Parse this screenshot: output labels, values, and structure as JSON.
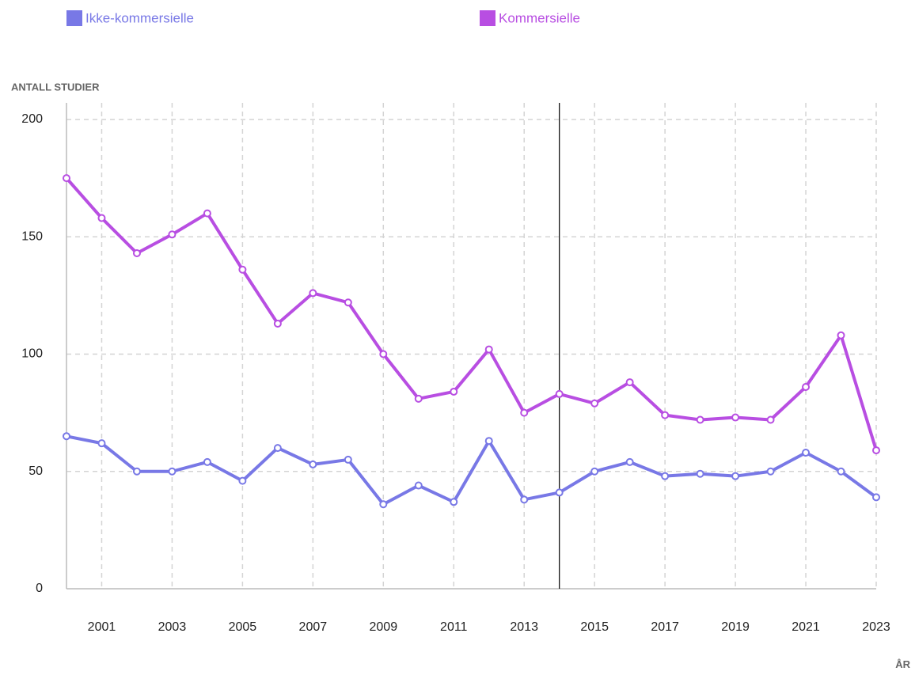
{
  "chart_data": {
    "type": "line",
    "x_label": "ÅR",
    "y_label": "ANTALL STUDIER",
    "x": [
      2000,
      2001,
      2002,
      2003,
      2004,
      2005,
      2006,
      2007,
      2008,
      2009,
      2010,
      2011,
      2012,
      2013,
      2014,
      2015,
      2016,
      2017,
      2018,
      2019,
      2020,
      2021,
      2022,
      2023
    ],
    "series": [
      {
        "name": "Ikke-kommersielle",
        "color": "#7878e6",
        "values": [
          65,
          62,
          50,
          50,
          54,
          46,
          60,
          53,
          55,
          36,
          44,
          37,
          63,
          38,
          41,
          50,
          54,
          48,
          49,
          48,
          50,
          58,
          50,
          39
        ]
      },
      {
        "name": "Kommersielle",
        "color": "#b84ee2",
        "values": [
          175,
          158,
          143,
          151,
          160,
          136,
          113,
          126,
          122,
          100,
          81,
          84,
          102,
          75,
          83,
          79,
          88,
          74,
          72,
          73,
          72,
          86,
          108,
          59
        ]
      }
    ],
    "xlim": [
      2000,
      2023
    ],
    "xticks": [
      2001,
      2003,
      2005,
      2007,
      2009,
      2011,
      2013,
      2015,
      2017,
      2019,
      2021,
      2023
    ],
    "ylim": [
      0,
      200
    ],
    "yticks": [
      0,
      50,
      100,
      150,
      200
    ],
    "grid": true,
    "legend": "top",
    "cursor_x": 2014
  }
}
